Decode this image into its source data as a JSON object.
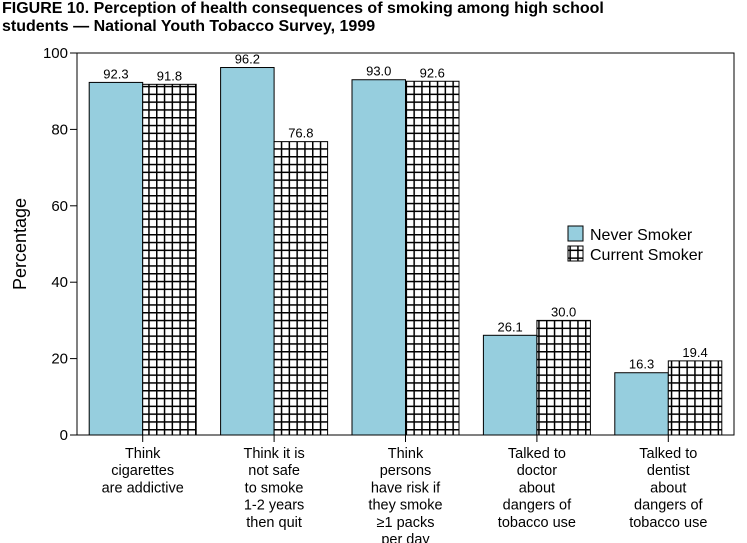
{
  "figure": {
    "title_line1": "FIGURE 10. Perception of health consequences of smoking among high school",
    "title_line2": "students — National Youth Tobacco Survey, 1999"
  },
  "colors": {
    "never": "#96cede",
    "current_fill": "#ffffff",
    "hatch": "#000000"
  },
  "chart_data": {
    "type": "bar",
    "title": "Perception of health consequences of smoking among high school students — National Youth Tobacco Survey, 1999",
    "xlabel": "",
    "ylabel": "Percentage",
    "ylim": [
      0,
      100
    ],
    "yticks": [
      "0",
      "20",
      "40",
      "60",
      "80",
      "100"
    ],
    "grid": false,
    "legend_position": "right",
    "categories": [
      [
        "Think",
        "cigarettes",
        "are addictive"
      ],
      [
        "Think it is",
        "not safe",
        "to smoke",
        "1-2 years",
        "then quit"
      ],
      [
        "Think",
        "persons",
        "have risk if",
        "they smoke",
        "≥1 packs",
        "per day"
      ],
      [
        "Talked to",
        "doctor",
        "about",
        "dangers of",
        "tobacco use"
      ],
      [
        "Talked to",
        "dentist",
        "about",
        "dangers of",
        "tobacco use"
      ]
    ],
    "series": [
      {
        "name": "Never Smoker",
        "values": [
          92.3,
          96.2,
          93.0,
          26.1,
          16.3
        ],
        "labels": [
          "92.3",
          "96.2",
          "93.0",
          "26.1",
          "16.3"
        ]
      },
      {
        "name": "Current Smoker",
        "values": [
          91.8,
          76.8,
          92.6,
          30.0,
          19.4
        ],
        "labels": [
          "91.8",
          "76.8",
          "92.6",
          "30.0",
          "19.4"
        ]
      }
    ]
  }
}
